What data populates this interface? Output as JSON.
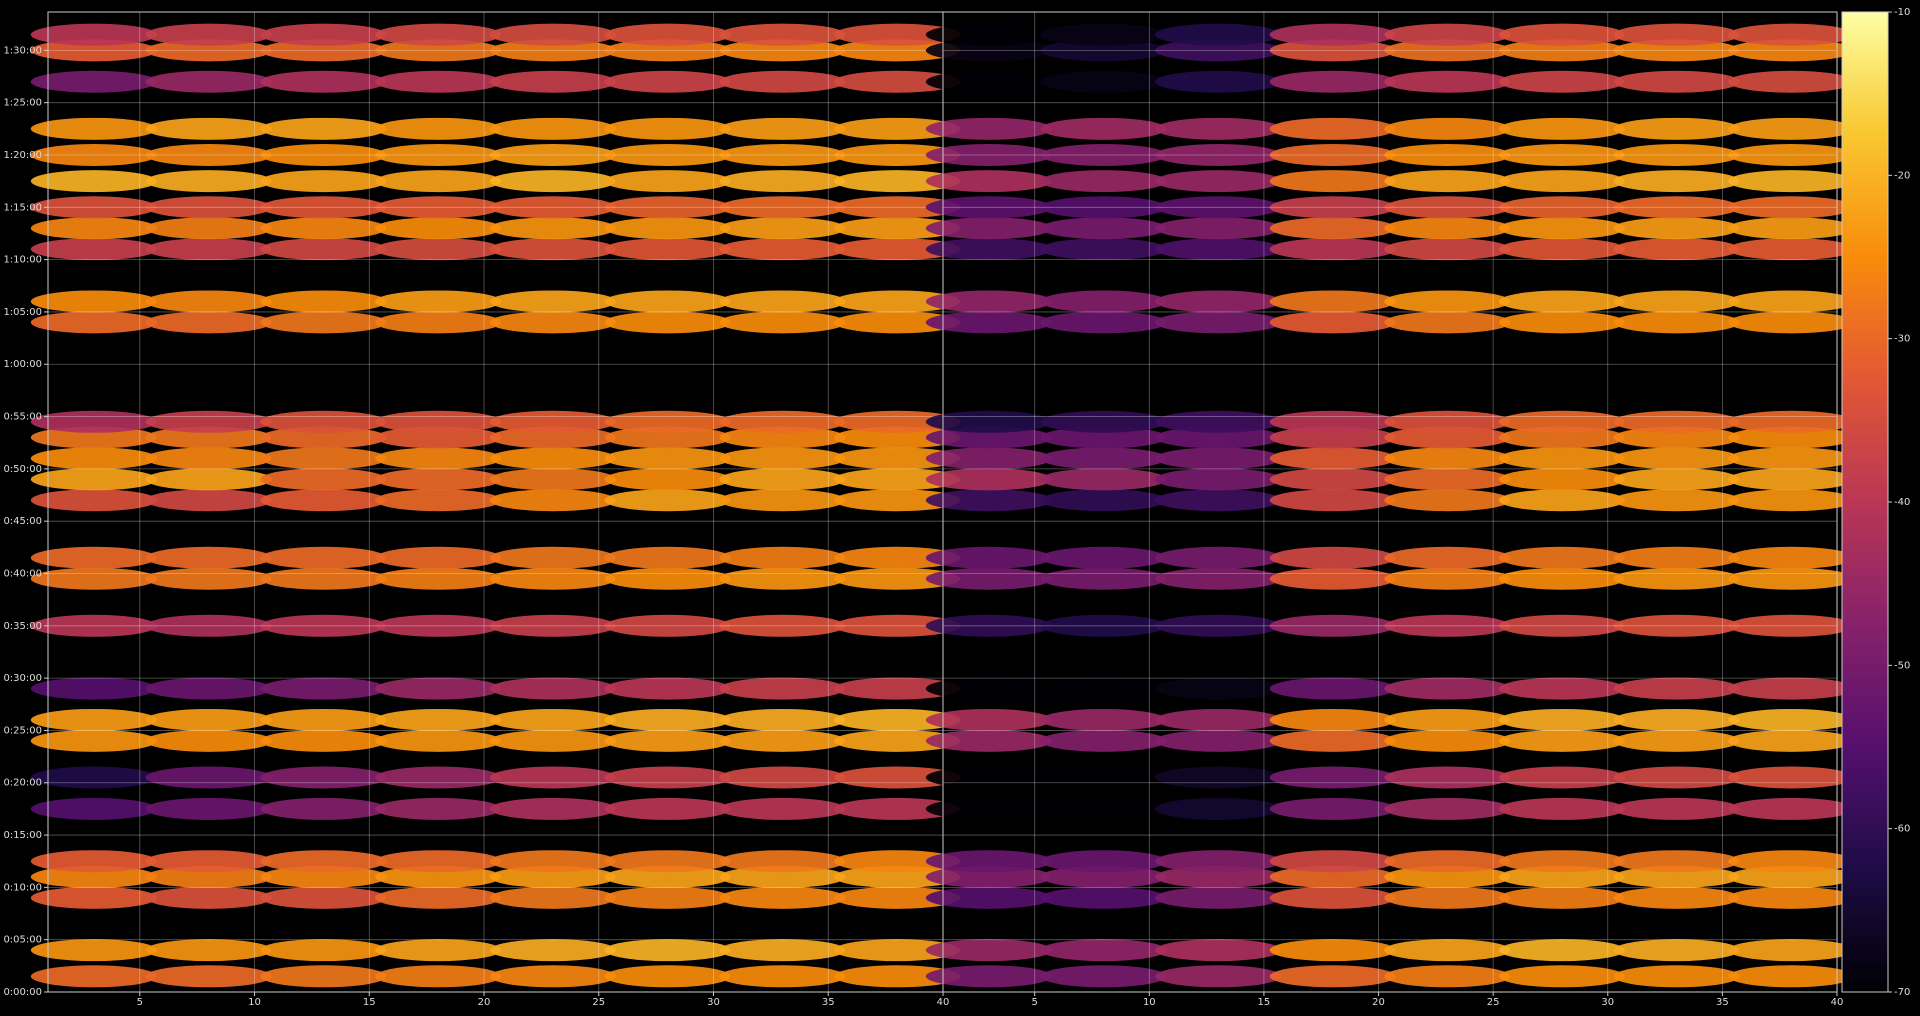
{
  "chart_data": [
    {
      "type": "heatmap",
      "x": [
        3,
        8,
        13,
        18,
        23,
        28,
        33,
        38
      ],
      "y": [
        90,
        240,
        540,
        660,
        750,
        1050,
        1230,
        1440,
        1560,
        1740,
        2100,
        2370,
        2490,
        2820,
        2940,
        3060,
        3180,
        3270,
        3840,
        3960,
        4260,
        4380,
        4500,
        4650,
        4800,
        4950,
        5220,
        5400,
        5490
      ],
      "values": [
        [
          -30,
          -30,
          -28,
          -27,
          -26,
          -25,
          -25,
          -25
        ],
        [
          -24,
          -24,
          -24,
          -22,
          -21,
          -20,
          -21,
          -22
        ],
        [
          -32,
          -34,
          -34,
          -30,
          -28,
          -27,
          -26,
          -26
        ],
        [
          -26,
          -27,
          -26,
          -24,
          -23,
          -22,
          -22,
          -22
        ],
        [
          -32,
          -32,
          -30,
          -30,
          -28,
          -28,
          -28,
          -26
        ],
        [
          -55,
          -52,
          -48,
          -45,
          -42,
          -40,
          -40,
          -40
        ],
        [
          -62,
          -52,
          -48,
          -45,
          -40,
          -38,
          -36,
          -34
        ],
        [
          -24,
          -25,
          -25,
          -24,
          -24,
          -23,
          -23,
          -22
        ],
        [
          -23,
          -23,
          -23,
          -22,
          -22,
          -21,
          -21,
          -20
        ],
        [
          -55,
          -52,
          -50,
          -45,
          -42,
          -40,
          -38,
          -38
        ],
        [
          -40,
          -42,
          -40,
          -40,
          -38,
          -36,
          -34,
          -34
        ],
        [
          -28,
          -28,
          -28,
          -27,
          -26,
          -25,
          -24,
          -24
        ],
        [
          -30,
          -30,
          -30,
          -30,
          -28,
          -28,
          -27,
          -26
        ],
        [
          -34,
          -36,
          -32,
          -30,
          -26,
          -22,
          -24,
          -24
        ],
        [
          -22,
          -22,
          -30,
          -30,
          -28,
          -25,
          -22,
          -22
        ],
        [
          -25,
          -26,
          -28,
          -26,
          -25,
          -24,
          -24,
          -24
        ],
        [
          -28,
          -28,
          -30,
          -32,
          -30,
          -28,
          -26,
          -25
        ],
        [
          -42,
          -38,
          -34,
          -34,
          -32,
          -30,
          -30,
          -30
        ],
        [
          -30,
          -30,
          -28,
          -27,
          -26,
          -25,
          -25,
          -25
        ],
        [
          -25,
          -26,
          -25,
          -23,
          -22,
          -22,
          -22,
          -22
        ],
        [
          -38,
          -38,
          -36,
          -35,
          -34,
          -33,
          -32,
          -32
        ],
        [
          -26,
          -27,
          -26,
          -25,
          -24,
          -24,
          -23,
          -23
        ],
        [
          -34,
          -34,
          -33,
          -32,
          -32,
          -31,
          -30,
          -30
        ],
        [
          -20,
          -21,
          -22,
          -22,
          -20,
          -22,
          -21,
          -20
        ],
        [
          -26,
          -26,
          -25,
          -24,
          -23,
          -24,
          -24,
          -24
        ],
        [
          -24,
          -22,
          -22,
          -24,
          -24,
          -24,
          -23,
          -23
        ],
        [
          -50,
          -45,
          -42,
          -40,
          -38,
          -37,
          -36,
          -35
        ],
        [
          -32,
          -30,
          -30,
          -28,
          -27,
          -27,
          -26,
          -26
        ],
        [
          -40,
          -38,
          -38,
          -36,
          -35,
          -34,
          -34,
          -34
        ]
      ],
      "xlim": [
        1,
        40
      ],
      "xticks": [
        5,
        10,
        15,
        20,
        25,
        30,
        35,
        40
      ],
      "ylim": [
        0,
        5620
      ],
      "yticks": [
        {
          "value": 0,
          "label": "0:00:00"
        },
        {
          "value": 300,
          "label": "0:05:00"
        },
        {
          "value": 600,
          "label": "0:10:00"
        },
        {
          "value": 900,
          "label": "0:15:00"
        },
        {
          "value": 1200,
          "label": "0:20:00"
        },
        {
          "value": 1500,
          "label": "0:25:00"
        },
        {
          "value": 1800,
          "label": "0:30:00"
        },
        {
          "value": 2100,
          "label": "0:35:00"
        },
        {
          "value": 2400,
          "label": "0:40:00"
        },
        {
          "value": 2700,
          "label": "0:45:00"
        },
        {
          "value": 3000,
          "label": "0:50:00"
        },
        {
          "value": 3300,
          "label": "0:55:00"
        },
        {
          "value": 3600,
          "label": "1:00:00"
        },
        {
          "value": 3900,
          "label": "1:05:00"
        },
        {
          "value": 4200,
          "label": "1:10:00"
        },
        {
          "value": 4500,
          "label": "1:15:00"
        },
        {
          "value": 4800,
          "label": "1:20:00"
        },
        {
          "value": 5100,
          "label": "1:25:00"
        },
        {
          "value": 5400,
          "label": "1:30:00"
        }
      ],
      "grid": true,
      "colormap": "inferno",
      "clim": [
        -70,
        -10
      ]
    },
    {
      "type": "heatmap",
      "x": [
        3,
        8,
        13,
        18,
        23,
        28,
        33,
        38
      ],
      "y": [
        90,
        240,
        540,
        660,
        750,
        1050,
        1230,
        1440,
        1560,
        1740,
        2100,
        2370,
        2490,
        2820,
        2940,
        3060,
        3180,
        3270,
        3840,
        3960,
        4260,
        4380,
        4500,
        4650,
        4800,
        4950,
        5220,
        5400,
        5490
      ],
      "values": [
        [
          -50,
          -50,
          -45,
          -30,
          -27,
          -25,
          -25,
          -25
        ],
        [
          -45,
          -46,
          -42,
          -25,
          -22,
          -20,
          -21,
          -22
        ],
        [
          -55,
          -55,
          -50,
          -34,
          -28,
          -27,
          -26,
          -26
        ],
        [
          -48,
          -48,
          -45,
          -30,
          -24,
          -22,
          -22,
          -22
        ],
        [
          -52,
          -52,
          -48,
          -36,
          -30,
          -28,
          -28,
          -26
        ],
        [
          -70,
          -70,
          -65,
          -50,
          -44,
          -40,
          -40,
          -40
        ],
        [
          -70,
          -70,
          -66,
          -50,
          -42,
          -38,
          -36,
          -34
        ],
        [
          -45,
          -48,
          -48,
          -30,
          -25,
          -23,
          -23,
          -22
        ],
        [
          -42,
          -45,
          -45,
          -26,
          -23,
          -21,
          -21,
          -20
        ],
        [
          -70,
          -70,
          -68,
          -52,
          -44,
          -40,
          -38,
          -38
        ],
        [
          -60,
          -62,
          -60,
          -45,
          -40,
          -36,
          -34,
          -34
        ],
        [
          -50,
          -50,
          -48,
          -32,
          -27,
          -25,
          -24,
          -24
        ],
        [
          -52,
          -52,
          -50,
          -36,
          -30,
          -28,
          -27,
          -26
        ],
        [
          -58,
          -60,
          -58,
          -36,
          -28,
          -22,
          -24,
          -24
        ],
        [
          -42,
          -45,
          -50,
          -36,
          -30,
          -25,
          -22,
          -22
        ],
        [
          -48,
          -50,
          -50,
          -32,
          -26,
          -24,
          -24,
          -24
        ],
        [
          -52,
          -52,
          -52,
          -38,
          -32,
          -28,
          -26,
          -25
        ],
        [
          -62,
          -60,
          -58,
          -40,
          -34,
          -30,
          -30,
          -30
        ],
        [
          -52,
          -52,
          -50,
          -32,
          -28,
          -25,
          -25,
          -25
        ],
        [
          -46,
          -48,
          -46,
          -28,
          -24,
          -22,
          -22,
          -22
        ],
        [
          -58,
          -58,
          -56,
          -40,
          -36,
          -33,
          -32,
          -32
        ],
        [
          -48,
          -50,
          -48,
          -30,
          -26,
          -24,
          -23,
          -23
        ],
        [
          -54,
          -55,
          -54,
          -38,
          -34,
          -31,
          -30,
          -30
        ],
        [
          -42,
          -45,
          -45,
          -28,
          -22,
          -22,
          -21,
          -20
        ],
        [
          -48,
          -48,
          -46,
          -30,
          -25,
          -24,
          -24,
          -24
        ],
        [
          -46,
          -44,
          -44,
          -30,
          -26,
          -24,
          -23,
          -23
        ],
        [
          -70,
          -68,
          -62,
          -45,
          -40,
          -37,
          -36,
          -35
        ],
        [
          -68,
          -65,
          -58,
          -34,
          -29,
          -27,
          -26,
          -26
        ],
        [
          -70,
          -68,
          -62,
          -42,
          -37,
          -34,
          -34,
          -34
        ]
      ],
      "xlim": [
        1,
        40
      ],
      "xticks": [
        5,
        10,
        15,
        20,
        25,
        30,
        35,
        40
      ],
      "ylim": [
        0,
        5620
      ],
      "grid": true,
      "colormap": "inferno",
      "clim": [
        -70,
        -10
      ]
    },
    {
      "type": "colorbar",
      "colormap": "inferno",
      "clim": [
        -70,
        -10
      ],
      "ticks": [
        -70,
        -60,
        -50,
        -40,
        -30,
        -20,
        -10
      ]
    }
  ]
}
